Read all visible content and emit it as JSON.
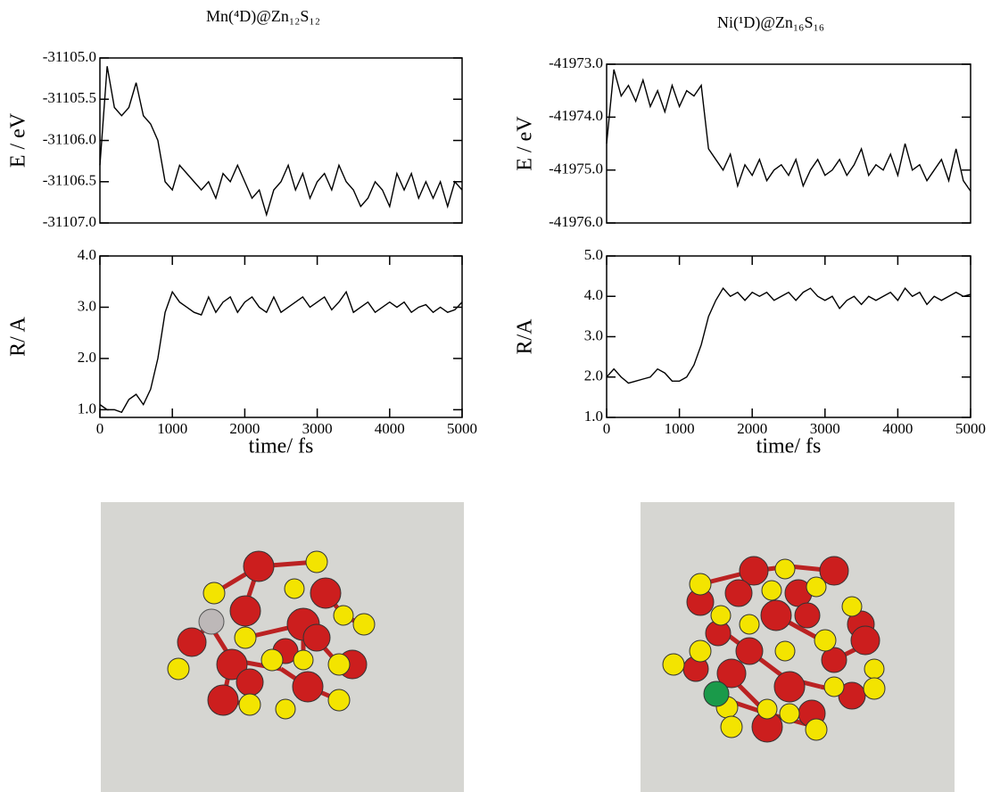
{
  "chart_data": [
    {
      "type": "line",
      "title": "Mn(⁴D)@Zn₁₂S₁₂",
      "ylabel": "E / eV",
      "x": [
        0,
        100,
        200,
        300,
        400,
        500,
        600,
        700,
        800,
        900,
        1000,
        1100,
        1200,
        1300,
        1400,
        1500,
        1600,
        1700,
        1800,
        1900,
        2000,
        2100,
        2200,
        2300,
        2400,
        2500,
        2600,
        2700,
        2800,
        2900,
        3000,
        3100,
        3200,
        3300,
        3400,
        3500,
        3600,
        3700,
        3800,
        3900,
        4000,
        4100,
        4200,
        4300,
        4400,
        4500,
        4600,
        4700,
        4800,
        4900,
        5000
      ],
      "values": [
        -31106.3,
        -31105.1,
        -31105.6,
        -31105.7,
        -31105.6,
        -31105.3,
        -31105.7,
        -31105.8,
        -31106.0,
        -31106.5,
        -31106.6,
        -31106.3,
        -31106.4,
        -31106.5,
        -31106.6,
        -31106.5,
        -31106.7,
        -31106.4,
        -31106.5,
        -31106.3,
        -31106.5,
        -31106.7,
        -31106.6,
        -31106.9,
        -31106.6,
        -31106.5,
        -31106.3,
        -31106.6,
        -31106.4,
        -31106.7,
        -31106.5,
        -31106.4,
        -31106.6,
        -31106.3,
        -31106.5,
        -31106.6,
        -31106.8,
        -31106.7,
        -31106.5,
        -31106.6,
        -31106.8,
        -31106.4,
        -31106.6,
        -31106.4,
        -31106.7,
        -31106.5,
        -31106.7,
        -31106.5,
        -31106.8,
        -31106.5,
        -31106.6
      ],
      "color": "#000000",
      "xlim": [
        0,
        5000
      ],
      "ylim": [
        -31107,
        -31105
      ],
      "yticks": [
        {
          "value": -31107,
          "label": "-31107.0"
        },
        {
          "value": -31106.5,
          "label": "-31106.5"
        },
        {
          "value": -31106,
          "label": "-31106.0"
        },
        {
          "value": -31105.5,
          "label": "-31105.5"
        },
        {
          "value": -31105,
          "label": "-31105.0"
        }
      ]
    },
    {
      "type": "line",
      "ylabel": "R/ A",
      "xlabel": "time/ fs",
      "x": [
        0,
        100,
        200,
        300,
        400,
        500,
        600,
        700,
        800,
        900,
        1000,
        1100,
        1200,
        1300,
        1400,
        1500,
        1600,
        1700,
        1800,
        1900,
        2000,
        2100,
        2200,
        2300,
        2400,
        2500,
        2600,
        2700,
        2800,
        2900,
        3000,
        3100,
        3200,
        3300,
        3400,
        3500,
        3600,
        3700,
        3800,
        3900,
        4000,
        4100,
        4200,
        4300,
        4400,
        4500,
        4600,
        4700,
        4800,
        4900,
        5000
      ],
      "values": [
        1.1,
        1.0,
        1.0,
        0.95,
        1.2,
        1.3,
        1.1,
        1.4,
        2.0,
        2.9,
        3.3,
        3.1,
        3.0,
        2.9,
        2.85,
        3.2,
        2.9,
        3.1,
        3.2,
        2.9,
        3.1,
        3.2,
        3.0,
        2.9,
        3.2,
        2.9,
        3.0,
        3.1,
        3.2,
        3.0,
        3.1,
        3.2,
        2.95,
        3.1,
        3.3,
        2.9,
        3.0,
        3.1,
        2.9,
        3.0,
        3.1,
        3.0,
        3.1,
        2.9,
        3.0,
        3.05,
        2.9,
        3.0,
        2.9,
        2.95,
        3.1
      ],
      "color": "#000000",
      "xlim": [
        0,
        5000
      ],
      "ylim": [
        0.85,
        4
      ],
      "xticks": [
        0,
        1000,
        2000,
        3000,
        4000,
        5000
      ],
      "yticks": [
        {
          "value": 1,
          "label": "1.0"
        },
        {
          "value": 2,
          "label": "2.0"
        },
        {
          "value": 3,
          "label": "3.0"
        },
        {
          "value": 4,
          "label": "4.0"
        }
      ]
    },
    {
      "type": "line",
      "title": "Ni(¹D)@Zn₁₆S₁₆",
      "ylabel": "E / eV",
      "x": [
        0,
        100,
        200,
        300,
        400,
        500,
        600,
        700,
        800,
        900,
        1000,
        1100,
        1200,
        1300,
        1400,
        1500,
        1600,
        1700,
        1800,
        1900,
        2000,
        2100,
        2200,
        2300,
        2400,
        2500,
        2600,
        2700,
        2800,
        2900,
        3000,
        3100,
        3200,
        3300,
        3400,
        3500,
        3600,
        3700,
        3800,
        3900,
        4000,
        4100,
        4200,
        4300,
        4400,
        4500,
        4600,
        4700,
        4800,
        4900,
        5000
      ],
      "values": [
        -41974.5,
        -41973.1,
        -41973.6,
        -41973.4,
        -41973.7,
        -41973.3,
        -41973.8,
        -41973.5,
        -41973.9,
        -41973.4,
        -41973.8,
        -41973.5,
        -41973.6,
        -41973.4,
        -41974.6,
        -41974.8,
        -41975.0,
        -41974.7,
        -41975.3,
        -41974.9,
        -41975.1,
        -41974.8,
        -41975.2,
        -41975.0,
        -41974.9,
        -41975.1,
        -41974.8,
        -41975.3,
        -41975.0,
        -41974.8,
        -41975.1,
        -41975.0,
        -41974.8,
        -41975.1,
        -41974.9,
        -41974.6,
        -41975.1,
        -41974.9,
        -41975.0,
        -41974.7,
        -41975.1,
        -41974.5,
        -41975.0,
        -41974.9,
        -41975.2,
        -41975.0,
        -41974.8,
        -41975.2,
        -41974.6,
        -41975.2,
        -41975.4
      ],
      "color": "#000000",
      "xlim": [
        0,
        5000
      ],
      "ylim": [
        -41976,
        -41973
      ],
      "yticks": [
        {
          "value": -41976,
          "label": "-41976.0"
        },
        {
          "value": -41975,
          "label": "-41975.0"
        },
        {
          "value": -41974,
          "label": "-41974.0"
        },
        {
          "value": -41973,
          "label": "-41973.0"
        }
      ]
    },
    {
      "type": "line",
      "ylabel": "R/A",
      "xlabel": "time/ fs",
      "x": [
        0,
        100,
        200,
        300,
        400,
        500,
        600,
        700,
        800,
        900,
        1000,
        1100,
        1200,
        1300,
        1400,
        1500,
        1600,
        1700,
        1800,
        1900,
        2000,
        2100,
        2200,
        2300,
        2400,
        2500,
        2600,
        2700,
        2800,
        2900,
        3000,
        3100,
        3200,
        3300,
        3400,
        3500,
        3600,
        3700,
        3800,
        3900,
        4000,
        4100,
        4200,
        4300,
        4400,
        4500,
        4600,
        4700,
        4800,
        4900,
        5000
      ],
      "values": [
        2.0,
        2.2,
        2.0,
        1.85,
        1.9,
        1.95,
        2.0,
        2.2,
        2.1,
        1.9,
        1.9,
        2.0,
        2.3,
        2.8,
        3.5,
        3.9,
        4.2,
        4.0,
        4.1,
        3.9,
        4.1,
        4.0,
        4.1,
        3.9,
        4.0,
        4.1,
        3.9,
        4.1,
        4.2,
        4.0,
        3.9,
        4.0,
        3.7,
        3.9,
        4.0,
        3.8,
        4.0,
        3.9,
        4.0,
        4.1,
        3.9,
        4.2,
        4.0,
        4.1,
        3.8,
        4.0,
        3.9,
        4.0,
        4.1,
        4.0,
        4.05
      ],
      "color": "#000000",
      "xlim": [
        0,
        5000
      ],
      "ylim": [
        1,
        5
      ],
      "xticks": [
        0,
        1000,
        2000,
        3000,
        4000,
        5000
      ],
      "yticks": [
        {
          "value": 1,
          "label": "1.0"
        },
        {
          "value": 2,
          "label": "2.0"
        },
        {
          "value": 3,
          "label": "3.0"
        },
        {
          "value": 4,
          "label": "4.0"
        },
        {
          "value": 5,
          "label": "5.0"
        }
      ]
    }
  ]
}
